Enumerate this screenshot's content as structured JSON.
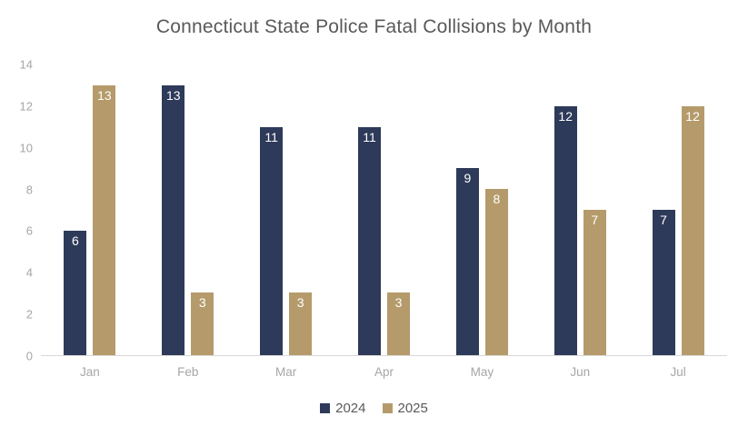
{
  "title": "Connecticut State Police Fatal Collisions by Month",
  "chart_data": {
    "type": "bar",
    "title": "Connecticut State Police Fatal Collisions by Month",
    "categories": [
      "Jan",
      "Feb",
      "Mar",
      "Apr",
      "May",
      "Jun",
      "Jul"
    ],
    "series": [
      {
        "name": "2024",
        "color": "#2e3a59",
        "values": [
          6,
          13,
          11,
          11,
          9,
          12,
          7
        ]
      },
      {
        "name": "2025",
        "color": "#b59b6b",
        "values": [
          13,
          3,
          3,
          3,
          8,
          7,
          12
        ]
      }
    ],
    "xlabel": "",
    "ylabel": "",
    "ylim": [
      0,
      14
    ],
    "yticks": [
      0,
      2,
      4,
      6,
      8,
      10,
      12,
      14
    ],
    "grid": false,
    "legend_position": "bottom",
    "data_labels": "inside-top-white"
  },
  "colors": {
    "title_text": "#595959",
    "axis_tick_text": "#a6a6a6",
    "axis_line": "#d9d9d9",
    "legend_text": "#595959",
    "background": "#ffffff"
  }
}
